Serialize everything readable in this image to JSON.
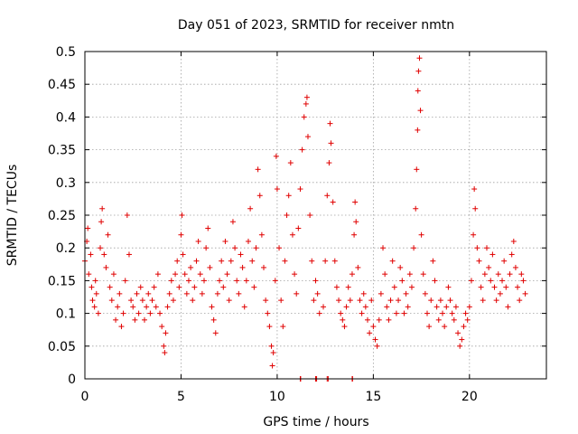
{
  "chart_data": {
    "type": "scatter",
    "title": "Day 051 of 2023, SRMTID for receiver nmtn",
    "xlabel": "GPS time / hours",
    "ylabel": "SRMTID / TECUs",
    "xlim": [
      0,
      24
    ],
    "ylim": [
      0,
      0.5
    ],
    "x_ticks": [
      0,
      5,
      10,
      15,
      20
    ],
    "x_tick_labels": [
      "0",
      "5",
      "10",
      "15",
      "20"
    ],
    "y_ticks": [
      0,
      0.05,
      0.1,
      0.15,
      0.2,
      0.25,
      0.3,
      0.35,
      0.4,
      0.45,
      0.5
    ],
    "y_tick_labels": [
      "0",
      "0.05",
      "0.1",
      "0.15",
      "0.2",
      "0.25",
      "0.3",
      "0.35",
      "0.4",
      "0.45",
      "0.5"
    ],
    "grid": true,
    "marker": "+",
    "color": "#e00000",
    "series": [
      {
        "name": "SRMTID",
        "points": [
          [
            0.0,
            0.18
          ],
          [
            0.1,
            0.21
          ],
          [
            0.15,
            0.23
          ],
          [
            0.2,
            0.16
          ],
          [
            0.3,
            0.19
          ],
          [
            0.35,
            0.14
          ],
          [
            0.4,
            0.12
          ],
          [
            0.5,
            0.11
          ],
          [
            0.55,
            0.15
          ],
          [
            0.6,
            0.13
          ],
          [
            0.7,
            0.1
          ],
          [
            0.8,
            0.2
          ],
          [
            0.85,
            0.24
          ],
          [
            0.9,
            0.26
          ],
          [
            1.0,
            0.19
          ],
          [
            1.1,
            0.17
          ],
          [
            1.2,
            0.22
          ],
          [
            1.3,
            0.14
          ],
          [
            1.4,
            0.12
          ],
          [
            1.5,
            0.16
          ],
          [
            1.6,
            0.09
          ],
          [
            1.7,
            0.11
          ],
          [
            1.8,
            0.13
          ],
          [
            1.9,
            0.08
          ],
          [
            2.0,
            0.1
          ],
          [
            2.1,
            0.15
          ],
          [
            2.2,
            0.25
          ],
          [
            2.3,
            0.19
          ],
          [
            2.4,
            0.12
          ],
          [
            2.5,
            0.11
          ],
          [
            2.6,
            0.09
          ],
          [
            2.7,
            0.13
          ],
          [
            2.8,
            0.1
          ],
          [
            2.9,
            0.14
          ],
          [
            3.0,
            0.12
          ],
          [
            3.1,
            0.09
          ],
          [
            3.2,
            0.11
          ],
          [
            3.3,
            0.13
          ],
          [
            3.4,
            0.1
          ],
          [
            3.5,
            0.12
          ],
          [
            3.6,
            0.14
          ],
          [
            3.7,
            0.11
          ],
          [
            3.8,
            0.16
          ],
          [
            3.9,
            0.1
          ],
          [
            4.0,
            0.08
          ],
          [
            4.1,
            0.05
          ],
          [
            4.15,
            0.04
          ],
          [
            4.2,
            0.07
          ],
          [
            4.3,
            0.11
          ],
          [
            4.4,
            0.13
          ],
          [
            4.5,
            0.15
          ],
          [
            4.6,
            0.12
          ],
          [
            4.7,
            0.16
          ],
          [
            4.8,
            0.18
          ],
          [
            4.9,
            0.14
          ],
          [
            5.0,
            0.22
          ],
          [
            5.05,
            0.25
          ],
          [
            5.1,
            0.19
          ],
          [
            5.2,
            0.16
          ],
          [
            5.3,
            0.13
          ],
          [
            5.4,
            0.15
          ],
          [
            5.5,
            0.17
          ],
          [
            5.6,
            0.12
          ],
          [
            5.7,
            0.14
          ],
          [
            5.8,
            0.18
          ],
          [
            5.9,
            0.21
          ],
          [
            6.0,
            0.16
          ],
          [
            6.1,
            0.13
          ],
          [
            6.2,
            0.15
          ],
          [
            6.3,
            0.2
          ],
          [
            6.4,
            0.23
          ],
          [
            6.5,
            0.17
          ],
          [
            6.6,
            0.11
          ],
          [
            6.7,
            0.09
          ],
          [
            6.8,
            0.07
          ],
          [
            6.9,
            0.13
          ],
          [
            7.0,
            0.15
          ],
          [
            7.1,
            0.18
          ],
          [
            7.2,
            0.14
          ],
          [
            7.3,
            0.21
          ],
          [
            7.4,
            0.16
          ],
          [
            7.5,
            0.12
          ],
          [
            7.6,
            0.18
          ],
          [
            7.7,
            0.24
          ],
          [
            7.8,
            0.2
          ],
          [
            7.9,
            0.15
          ],
          [
            8.0,
            0.13
          ],
          [
            8.1,
            0.19
          ],
          [
            8.2,
            0.17
          ],
          [
            8.3,
            0.11
          ],
          [
            8.4,
            0.15
          ],
          [
            8.5,
            0.21
          ],
          [
            8.6,
            0.26
          ],
          [
            8.7,
            0.18
          ],
          [
            8.8,
            0.14
          ],
          [
            8.9,
            0.2
          ],
          [
            9.0,
            0.32
          ],
          [
            9.1,
            0.28
          ],
          [
            9.2,
            0.22
          ],
          [
            9.3,
            0.17
          ],
          [
            9.4,
            0.12
          ],
          [
            9.5,
            0.1
          ],
          [
            9.6,
            0.08
          ],
          [
            9.7,
            0.05
          ],
          [
            9.75,
            0.02
          ],
          [
            9.8,
            0.04
          ],
          [
            9.9,
            0.15
          ],
          [
            9.95,
            0.34
          ],
          [
            10.0,
            0.29
          ],
          [
            10.1,
            0.2
          ],
          [
            10.2,
            0.12
          ],
          [
            10.3,
            0.08
          ],
          [
            10.4,
            0.18
          ],
          [
            10.5,
            0.25
          ],
          [
            10.6,
            0.28
          ],
          [
            10.7,
            0.33
          ],
          [
            10.8,
            0.22
          ],
          [
            10.9,
            0.16
          ],
          [
            11.0,
            0.13
          ],
          [
            11.1,
            0.23
          ],
          [
            11.2,
            0.29
          ],
          [
            11.3,
            0.35
          ],
          [
            11.4,
            0.4
          ],
          [
            11.5,
            0.42
          ],
          [
            11.55,
            0.43
          ],
          [
            11.6,
            0.37
          ],
          [
            11.7,
            0.25
          ],
          [
            11.8,
            0.18
          ],
          [
            11.9,
            0.12
          ],
          [
            12.0,
            0.15
          ],
          [
            12.1,
            0.13
          ],
          [
            12.2,
            0.1
          ],
          [
            12.4,
            0.11
          ],
          [
            12.5,
            0.18
          ],
          [
            12.6,
            0.28
          ],
          [
            12.7,
            0.33
          ],
          [
            12.75,
            0.39
          ],
          [
            12.8,
            0.36
          ],
          [
            12.9,
            0.27
          ],
          [
            13.0,
            0.18
          ],
          [
            13.1,
            0.14
          ],
          [
            13.2,
            0.12
          ],
          [
            13.3,
            0.1
          ],
          [
            13.4,
            0.09
          ],
          [
            13.5,
            0.08
          ],
          [
            13.6,
            0.11
          ],
          [
            13.7,
            0.14
          ],
          [
            13.8,
            0.12
          ],
          [
            13.9,
            0.16
          ],
          [
            14.0,
            0.22
          ],
          [
            14.05,
            0.27
          ],
          [
            14.1,
            0.24
          ],
          [
            14.2,
            0.17
          ],
          [
            14.3,
            0.12
          ],
          [
            14.4,
            0.1
          ],
          [
            14.5,
            0.13
          ],
          [
            14.6,
            0.11
          ],
          [
            14.7,
            0.09
          ],
          [
            14.8,
            0.07
          ],
          [
            14.9,
            0.12
          ],
          [
            15.0,
            0.08
          ],
          [
            15.1,
            0.06
          ],
          [
            15.2,
            0.05
          ],
          [
            15.3,
            0.09
          ],
          [
            15.4,
            0.13
          ],
          [
            15.5,
            0.2
          ],
          [
            15.6,
            0.16
          ],
          [
            15.7,
            0.11
          ],
          [
            15.8,
            0.09
          ],
          [
            15.9,
            0.12
          ],
          [
            16.0,
            0.18
          ],
          [
            16.1,
            0.14
          ],
          [
            16.2,
            0.1
          ],
          [
            16.3,
            0.12
          ],
          [
            16.4,
            0.17
          ],
          [
            16.5,
            0.15
          ],
          [
            16.6,
            0.1
          ],
          [
            16.7,
            0.13
          ],
          [
            16.8,
            0.11
          ],
          [
            16.9,
            0.16
          ],
          [
            17.0,
            0.14
          ],
          [
            17.1,
            0.2
          ],
          [
            17.2,
            0.26
          ],
          [
            17.25,
            0.32
          ],
          [
            17.3,
            0.38
          ],
          [
            17.32,
            0.44
          ],
          [
            17.35,
            0.47
          ],
          [
            17.4,
            0.49
          ],
          [
            17.45,
            0.41
          ],
          [
            17.5,
            0.22
          ],
          [
            17.6,
            0.16
          ],
          [
            17.7,
            0.13
          ],
          [
            17.8,
            0.1
          ],
          [
            17.9,
            0.08
          ],
          [
            18.0,
            0.12
          ],
          [
            18.1,
            0.18
          ],
          [
            18.2,
            0.15
          ],
          [
            18.3,
            0.11
          ],
          [
            18.4,
            0.09
          ],
          [
            18.5,
            0.12
          ],
          [
            18.6,
            0.1
          ],
          [
            18.7,
            0.08
          ],
          [
            18.8,
            0.11
          ],
          [
            18.9,
            0.14
          ],
          [
            19.0,
            0.12
          ],
          [
            19.1,
            0.1
          ],
          [
            19.2,
            0.09
          ],
          [
            19.3,
            0.11
          ],
          [
            19.4,
            0.07
          ],
          [
            19.5,
            0.05
          ],
          [
            19.6,
            0.06
          ],
          [
            19.7,
            0.08
          ],
          [
            19.8,
            0.1
          ],
          [
            19.9,
            0.09
          ],
          [
            20.0,
            0.11
          ],
          [
            20.1,
            0.15
          ],
          [
            20.2,
            0.22
          ],
          [
            20.25,
            0.29
          ],
          [
            20.3,
            0.26
          ],
          [
            20.4,
            0.2
          ],
          [
            20.5,
            0.18
          ],
          [
            20.6,
            0.14
          ],
          [
            20.7,
            0.12
          ],
          [
            20.8,
            0.16
          ],
          [
            20.9,
            0.2
          ],
          [
            21.0,
            0.17
          ],
          [
            21.1,
            0.15
          ],
          [
            21.2,
            0.19
          ],
          [
            21.3,
            0.14
          ],
          [
            21.4,
            0.12
          ],
          [
            21.5,
            0.16
          ],
          [
            21.6,
            0.13
          ],
          [
            21.7,
            0.15
          ],
          [
            21.8,
            0.18
          ],
          [
            21.9,
            0.14
          ],
          [
            22.0,
            0.11
          ],
          [
            22.1,
            0.16
          ],
          [
            22.2,
            0.19
          ],
          [
            22.3,
            0.21
          ],
          [
            22.4,
            0.17
          ],
          [
            22.5,
            0.14
          ],
          [
            22.6,
            0.12
          ],
          [
            22.7,
            0.16
          ],
          [
            22.8,
            0.15
          ],
          [
            22.9,
            0.13
          ]
        ]
      },
      {
        "name": "zero-line markers",
        "points": [
          [
            11.2,
            0.0
          ],
          [
            11.22,
            0.0
          ],
          [
            12.0,
            0.0
          ],
          [
            12.05,
            0.0
          ],
          [
            12.6,
            0.0
          ],
          [
            12.65,
            0.0
          ],
          [
            13.9,
            0.0
          ],
          [
            13.92,
            0.0
          ]
        ]
      }
    ]
  }
}
